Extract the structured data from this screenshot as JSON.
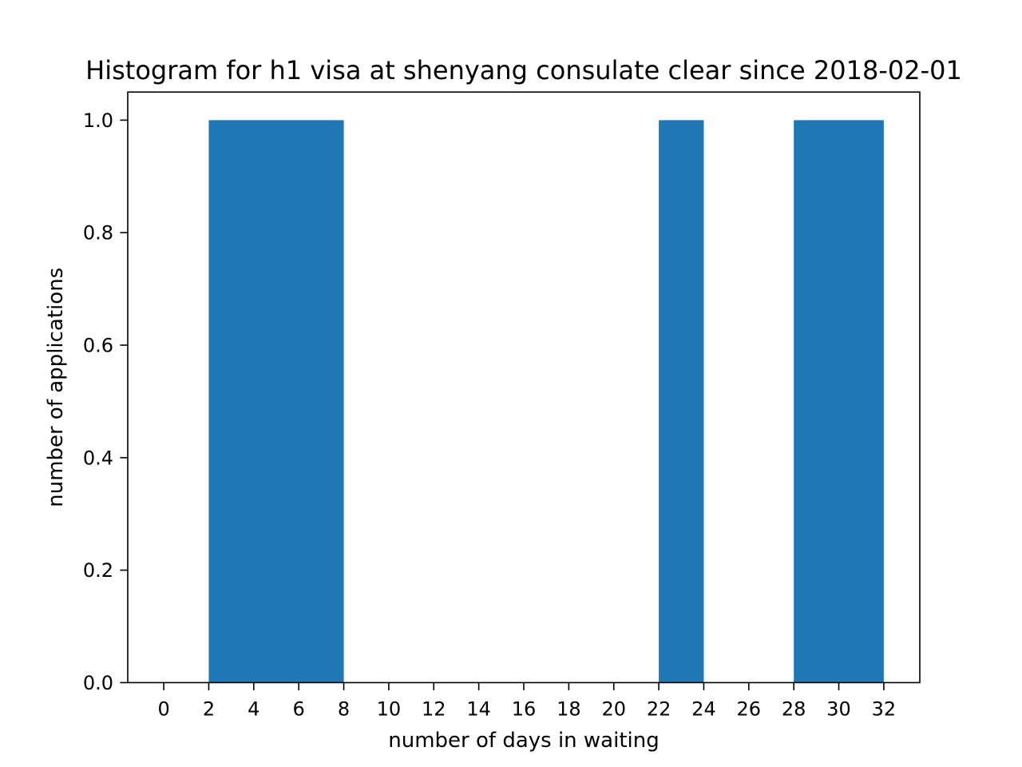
{
  "chart_data": {
    "type": "bar",
    "title": "Histogram for h1 visa at shenyang consulate clear since 2018-02-01",
    "xlabel": "number of days in waiting",
    "ylabel": "number of applications",
    "xlim": [
      -1.6,
      33.6
    ],
    "ylim": [
      0,
      1.05
    ],
    "x_ticks": [
      0,
      2,
      4,
      6,
      8,
      10,
      12,
      14,
      16,
      18,
      20,
      22,
      24,
      26,
      28,
      30,
      32
    ],
    "x_tick_labels": [
      "0",
      "2",
      "4",
      "6",
      "8",
      "10",
      "12",
      "14",
      "16",
      "18",
      "20",
      "22",
      "24",
      "26",
      "28",
      "30",
      "32"
    ],
    "y_ticks": [
      0.0,
      0.2,
      0.4,
      0.6,
      0.8,
      1.0
    ],
    "y_tick_labels": [
      "0.0",
      "0.2",
      "0.4",
      "0.6",
      "0.8",
      "1.0"
    ],
    "bins": [
      {
        "start": 2,
        "end": 8,
        "count": 1
      },
      {
        "start": 22,
        "end": 24,
        "count": 1
      },
      {
        "start": 28,
        "end": 32,
        "count": 1
      }
    ],
    "bar_color": "#1f77b4",
    "grid": false
  }
}
